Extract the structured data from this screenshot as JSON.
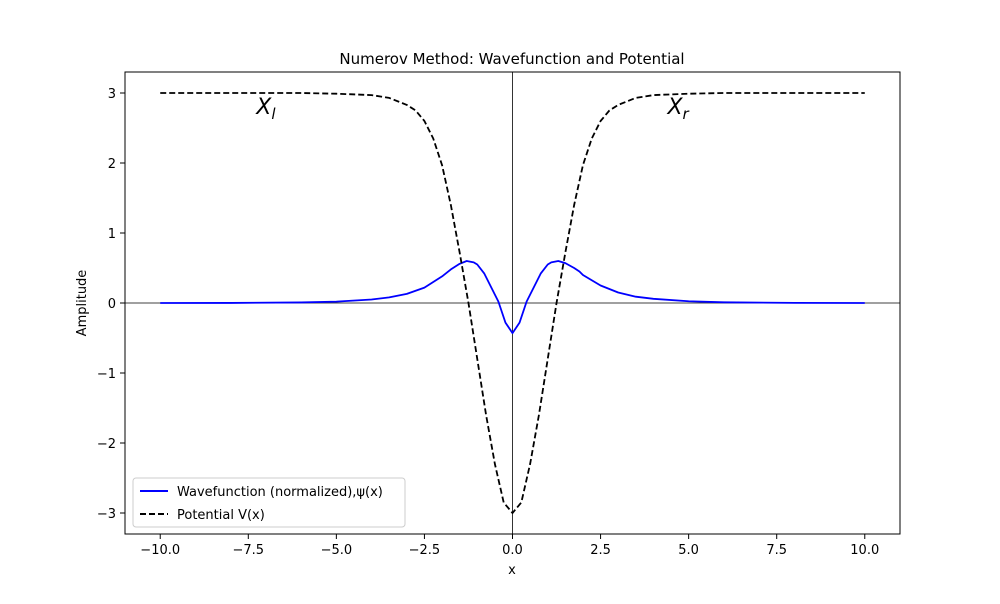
{
  "chart_data": {
    "type": "line",
    "title": "Numerov Method: Wavefunction and Potential",
    "xlabel": "x",
    "ylabel": "Amplitude",
    "xlim": [
      -11,
      11
    ],
    "ylim": [
      -3.3,
      3.3
    ],
    "xticks": [
      -10.0,
      -7.5,
      -5.0,
      -2.5,
      0.0,
      2.5,
      5.0,
      7.5,
      10.0
    ],
    "xtick_labels": [
      "−10.0",
      "−7.5",
      "−5.0",
      "−2.5",
      "0.0",
      "2.5",
      "5.0",
      "7.5",
      "10.0"
    ],
    "yticks": [
      -3,
      -2,
      -1,
      0,
      1,
      2,
      3
    ],
    "ytick_labels": [
      "−3",
      "−2",
      "−1",
      "0",
      "1",
      "2",
      "3"
    ],
    "grid": false,
    "zero_lines": true,
    "legend_position": "lower-left",
    "series": [
      {
        "name": "Wavefunction (normalized),ψ(x)",
        "color": "#0000ff",
        "style": "solid",
        "x": [
          -10,
          -8,
          -6,
          -5,
          -4,
          -3.5,
          -3,
          -2.5,
          -2,
          -1.75,
          -1.5,
          -1.3,
          -1.1,
          -1,
          -0.8,
          -0.6,
          -0.4,
          -0.2,
          0,
          0.2,
          0.4,
          0.6,
          0.8,
          1,
          1.1,
          1.3,
          1.5,
          1.75,
          1.9,
          2,
          2.5,
          3,
          3.5,
          4,
          5,
          6,
          8,
          10
        ],
        "y": [
          0.0,
          0.001,
          0.008,
          0.02,
          0.05,
          0.08,
          0.13,
          0.22,
          0.38,
          0.48,
          0.56,
          0.6,
          0.58,
          0.55,
          0.42,
          0.22,
          0.02,
          -0.28,
          -0.43,
          -0.28,
          0.02,
          0.22,
          0.42,
          0.55,
          0.58,
          0.6,
          0.57,
          0.5,
          0.45,
          0.4,
          0.25,
          0.15,
          0.09,
          0.06,
          0.025,
          0.01,
          0.002,
          0.0
        ]
      },
      {
        "name": "Potential V(x)",
        "color": "#000000",
        "style": "dashed",
        "x": [
          -10,
          -8,
          -6,
          -5,
          -4,
          -3.5,
          -3,
          -2.75,
          -2.5,
          -2.25,
          -2,
          -1.75,
          -1.5,
          -1.25,
          -1,
          -0.75,
          -0.5,
          -0.25,
          0,
          0.25,
          0.5,
          0.75,
          1,
          1.25,
          1.5,
          1.75,
          2,
          2.25,
          2.5,
          2.75,
          3,
          3.5,
          4,
          5,
          6,
          8,
          10
        ],
        "y": [
          3.0,
          3.0,
          3.0,
          2.99,
          2.97,
          2.93,
          2.83,
          2.75,
          2.6,
          2.35,
          1.97,
          1.4,
          0.72,
          0.0,
          -0.8,
          -1.6,
          -2.3,
          -2.85,
          -3.0,
          -2.85,
          -2.3,
          -1.6,
          -0.8,
          0.0,
          0.72,
          1.4,
          1.97,
          2.35,
          2.6,
          2.75,
          2.83,
          2.93,
          2.97,
          2.99,
          3.0,
          3.0,
          3.0
        ]
      }
    ],
    "annotations": [
      {
        "text": "X",
        "subscript": "l",
        "x": -7,
        "y": 2.7
      },
      {
        "text": "X",
        "subscript": "r",
        "x": 4.7,
        "y": 2.7
      }
    ]
  },
  "colors": {
    "axes": "#000000",
    "wavefunction": "#0000ff",
    "potential": "#000000",
    "legend_border": "#cccccc"
  }
}
